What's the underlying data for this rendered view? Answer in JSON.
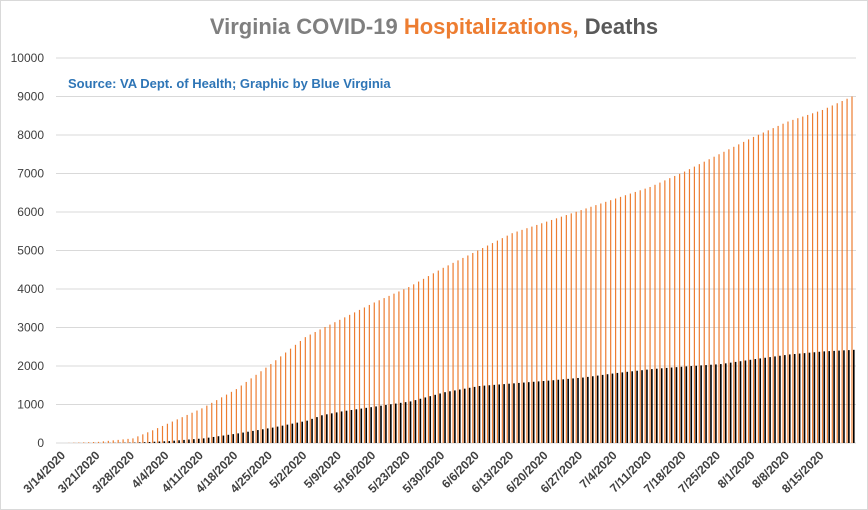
{
  "title": {
    "part1": "Virginia COVID-19 ",
    "part2": "Hospitalizations,",
    "part3": " Deaths"
  },
  "source": "Source: VA Dept. of Health; Graphic by Blue Virginia",
  "colors": {
    "hospitalizations": "#ed7d31",
    "deaths": "#000000",
    "grid": "#d9d9d9",
    "title_gray": "#7f7f7f",
    "source_blue": "#2e75b6"
  },
  "chart_data": {
    "type": "bar",
    "title": "Virginia COVID-19 Hospitalizations, Deaths",
    "subtitle": "Source: VA Dept. of Health; Graphic by Blue Virginia",
    "xlabel": "",
    "ylabel": "",
    "ylim": [
      0,
      10000
    ],
    "yticks": [
      0,
      1000,
      2000,
      3000,
      4000,
      5000,
      6000,
      7000,
      8000,
      9000,
      10000
    ],
    "grid": true,
    "legend": "none",
    "x_start": "3/14/2020",
    "x_end": "8/21/2020",
    "xtick_labels": [
      "3/14/2020",
      "3/21/2020",
      "3/28/2020",
      "4/4/2020",
      "4/11/2020",
      "4/18/2020",
      "4/25/2020",
      "5/2/2020",
      "5/9/2020",
      "5/16/2020",
      "5/23/2020",
      "5/30/2020",
      "6/6/2020",
      "6/13/2020",
      "6/20/2020",
      "6/27/2020",
      "7/4/2020",
      "7/11/2020",
      "7/18/2020",
      "7/25/2020",
      "8/1/2020",
      "8/8/2020",
      "8/15/2020"
    ],
    "series": [
      {
        "name": "Hospitalizations",
        "points": [
          [
            "3/14/2020",
            0
          ],
          [
            "3/21/2020",
            30
          ],
          [
            "3/28/2020",
            120
          ],
          [
            "4/1/2020",
            330
          ],
          [
            "4/4/2020",
            500
          ],
          [
            "4/11/2020",
            900
          ],
          [
            "4/18/2020",
            1400
          ],
          [
            "4/25/2020",
            2050
          ],
          [
            "5/2/2020",
            2750
          ],
          [
            "5/5/2020",
            2950
          ],
          [
            "5/9/2020",
            3200
          ],
          [
            "5/16/2020",
            3650
          ],
          [
            "5/23/2020",
            4050
          ],
          [
            "5/30/2020",
            4550
          ],
          [
            "6/6/2020",
            5000
          ],
          [
            "6/13/2020",
            5450
          ],
          [
            "6/20/2020",
            5750
          ],
          [
            "6/27/2020",
            6050
          ],
          [
            "7/4/2020",
            6350
          ],
          [
            "7/11/2020",
            6650
          ],
          [
            "7/18/2020",
            7050
          ],
          [
            "7/25/2020",
            7500
          ],
          [
            "8/1/2020",
            7950
          ],
          [
            "8/8/2020",
            8350
          ],
          [
            "8/15/2020",
            8650
          ],
          [
            "8/21/2020",
            9000
          ]
        ]
      },
      {
        "name": "Deaths",
        "points": [
          [
            "3/14/2020",
            0
          ],
          [
            "3/21/2020",
            2
          ],
          [
            "3/28/2020",
            10
          ],
          [
            "4/4/2020",
            50
          ],
          [
            "4/11/2020",
            120
          ],
          [
            "4/18/2020",
            250
          ],
          [
            "4/25/2020",
            400
          ],
          [
            "5/2/2020",
            580
          ],
          [
            "5/5/2020",
            720
          ],
          [
            "5/9/2020",
            820
          ],
          [
            "5/16/2020",
            950
          ],
          [
            "5/23/2020",
            1080
          ],
          [
            "5/30/2020",
            1320
          ],
          [
            "6/6/2020",
            1480
          ],
          [
            "6/13/2020",
            1550
          ],
          [
            "6/20/2020",
            1620
          ],
          [
            "6/27/2020",
            1700
          ],
          [
            "7/4/2020",
            1820
          ],
          [
            "7/11/2020",
            1920
          ],
          [
            "7/18/2020",
            1990
          ],
          [
            "7/25/2020",
            2050
          ],
          [
            "8/1/2020",
            2180
          ],
          [
            "8/8/2020",
            2300
          ],
          [
            "8/15/2020",
            2380
          ],
          [
            "8/21/2020",
            2420
          ]
        ]
      }
    ]
  }
}
